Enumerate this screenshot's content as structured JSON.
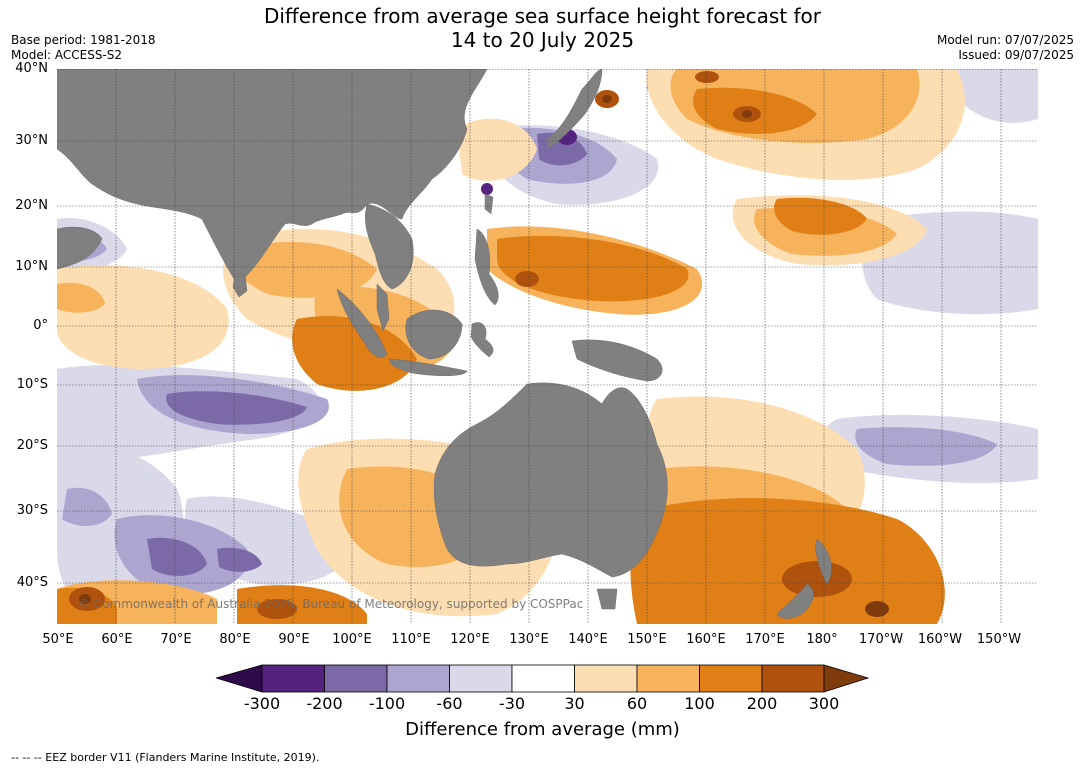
{
  "title_line1": "Difference from average sea surface height forecast for",
  "title_line2": "14 to 20 July 2025",
  "base_period": "Base period: 1981-2018",
  "model": "Model: ACCESS-S2",
  "model_run": "Model run: 07/07/2025",
  "issued": "Issued: 09/07/2025",
  "credit": "© Commonwealth of Australia 2025, Bureau of Meteorology, supported by COSPPac",
  "footer": "--  --  -- EEZ border V11 (Flanders Marine Institute, 2019).",
  "lat_labels": [
    "40°N",
    "30°N",
    "20°N",
    "10°N",
    "0°",
    "10°S",
    "20°S",
    "30°S",
    "40°S"
  ],
  "lon_labels": [
    "50°E",
    "60°E",
    "70°E",
    "80°E",
    "90°E",
    "100°E",
    "110°E",
    "120°E",
    "130°E",
    "140°E",
    "150°E",
    "160°E",
    "170°E",
    "180°",
    "170°W",
    "160°W",
    "150°W"
  ],
  "colorbar": {
    "title": "Difference from average (mm)",
    "ticks": [
      "-300",
      "-200",
      "-100",
      "-60",
      "-30",
      "30",
      "60",
      "100",
      "200",
      "300"
    ],
    "colors": [
      "#2e0a4a",
      "#55237f",
      "#7c6aa8",
      "#aca5cf",
      "#d9d9ea",
      "#ffffff",
      "#fdddb2",
      "#f7b25c",
      "#df7f16",
      "#ae520e",
      "#7f3b0b"
    ]
  },
  "map_colors": {
    "land": "#808080",
    "ocean": "#ffffff",
    "grid": "#333333"
  }
}
